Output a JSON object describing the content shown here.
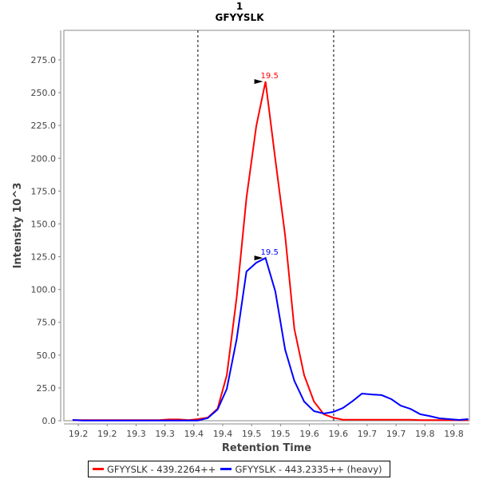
{
  "chart_data": {
    "type": "line",
    "title": "1",
    "subtitle": "GFYYSLK",
    "xlabel": "Retention Time",
    "ylabel": "Intensity 10^3",
    "xlim": [
      19.175,
      19.877
    ],
    "ylim": [
      0,
      297.5
    ],
    "grid": false,
    "legend_position": "bottom",
    "x_ticks": [
      19.2,
      19.25,
      19.3,
      19.35,
      19.4,
      19.45,
      19.5,
      19.55,
      19.6,
      19.65,
      19.7,
      19.75,
      19.8,
      19.85
    ],
    "x_tick_labels": [
      "19.2",
      "19.2",
      "19.3",
      "19.3",
      "19.4",
      "19.4",
      "19.5",
      "19.5",
      "19.6",
      "19.6",
      "19.7",
      "19.7",
      "19.8",
      "19.8"
    ],
    "y_ticks": [
      0,
      25,
      50,
      75,
      100,
      125,
      150,
      175,
      200,
      225,
      250,
      275
    ],
    "y_tick_labels": [
      "0.0",
      "25.0",
      "50.0",
      "75.0",
      "100.0",
      "125.0",
      "150.0",
      "175.0",
      "200.0",
      "225.0",
      "250.0",
      "275.0"
    ],
    "x": [
      19.19,
      19.207,
      19.223,
      19.24,
      19.257,
      19.274,
      19.29,
      19.307,
      19.324,
      19.34,
      19.357,
      19.374,
      19.391,
      19.407,
      19.424,
      19.441,
      19.457,
      19.474,
      19.491,
      19.508,
      19.524,
      19.541,
      19.558,
      19.574,
      19.591,
      19.608,
      19.625,
      19.641,
      19.658,
      19.675,
      19.691,
      19.708,
      19.725,
      19.742,
      19.758,
      19.775,
      19.792,
      19.808,
      19.825,
      19.842,
      19.859,
      19.875
    ],
    "series": [
      {
        "name": "GFYYSLK - 439.2264++",
        "color": "#ff0000",
        "values": [
          0.5,
          0.5,
          0.5,
          0.5,
          0.5,
          0.5,
          0.5,
          0.5,
          0.5,
          0.5,
          1.0,
          1.0,
          0.5,
          1.2,
          2.4,
          9.1,
          34.7,
          93.7,
          169.7,
          224.5,
          258.5,
          199,
          141,
          70,
          34.7,
          14.6,
          4.9,
          2.4,
          0.8,
          0.8,
          0.8,
          0.8,
          0.8,
          0.8,
          0.8,
          0.8,
          0.4,
          0.4,
          0.4,
          0.4,
          0.4,
          0.4
        ],
        "peak_label": "19.5",
        "peak_index": 20
      },
      {
        "name": "GFYYSLK - 443.2335++ (heavy)",
        "color": "#0000ff",
        "values": [
          0.6,
          0.2,
          0.2,
          0.2,
          0.2,
          0.2,
          0.2,
          0.2,
          0.2,
          0.2,
          0.2,
          0.2,
          0.2,
          0.2,
          2.0,
          8.5,
          24.3,
          62,
          113.7,
          120.4,
          124,
          98.5,
          54,
          30.4,
          14.6,
          7.3,
          5.5,
          6.7,
          9.7,
          15,
          20.7,
          20,
          19.5,
          16.4,
          11.5,
          9,
          4.9,
          3.6,
          1.8,
          1.2,
          0.6,
          1.2
        ],
        "peak_label": "19.5",
        "peak_index": 20
      }
    ],
    "integration_bounds": [
      19.407,
      19.642
    ]
  }
}
